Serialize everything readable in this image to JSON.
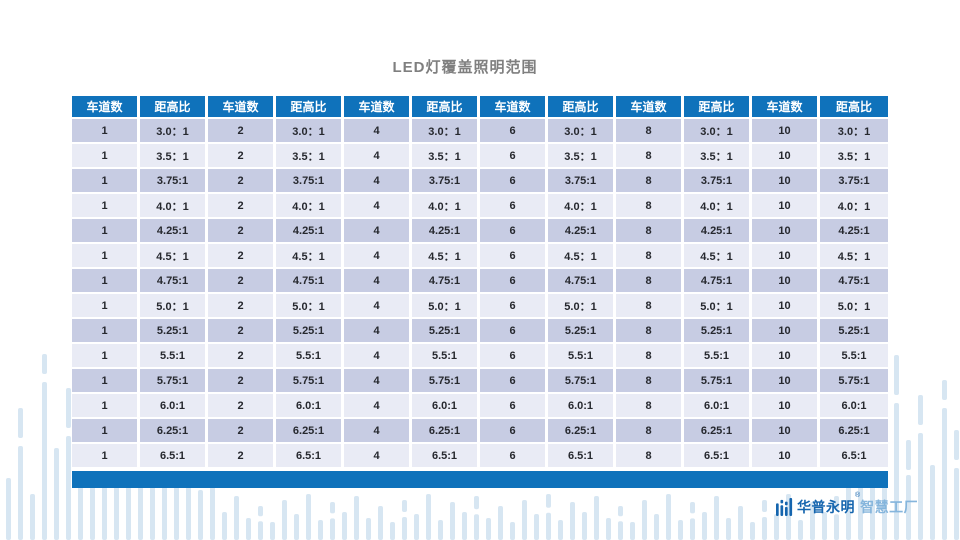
{
  "page_title": "LED灯覆盖照明范围",
  "table": {
    "lane_header_label": "车道数",
    "ratio_header_label": "距高比",
    "lane_counts": [
      "1",
      "2",
      "4",
      "6",
      "8",
      "10"
    ],
    "ratio_rows": [
      "3.0：1",
      "3.5：1",
      "3.75:1",
      "4.0：1",
      "4.25:1",
      "4.5：1",
      "4.75:1",
      "5.0：1",
      "5.25:1",
      "5.5:1",
      "5.75:1",
      "6.0:1",
      "6.25:1",
      "6.5:1"
    ]
  },
  "footer_logo": {
    "brand_name": "华普永明",
    "registered_mark": "®",
    "brand_suffix": "智慧工厂"
  },
  "colors": {
    "header_blue": "#0f72bb",
    "footer_bar_blue": "#0f72bb",
    "row_dark": "#c7cce3",
    "row_light": "#e9ebf5",
    "title_gray": "#7f7f7f",
    "decor_bar_blue": "#d7e6f2",
    "brand_dark_blue": "#1565ae",
    "brand_light_blue": "#85b5dc",
    "cell_text": "#26282e"
  }
}
